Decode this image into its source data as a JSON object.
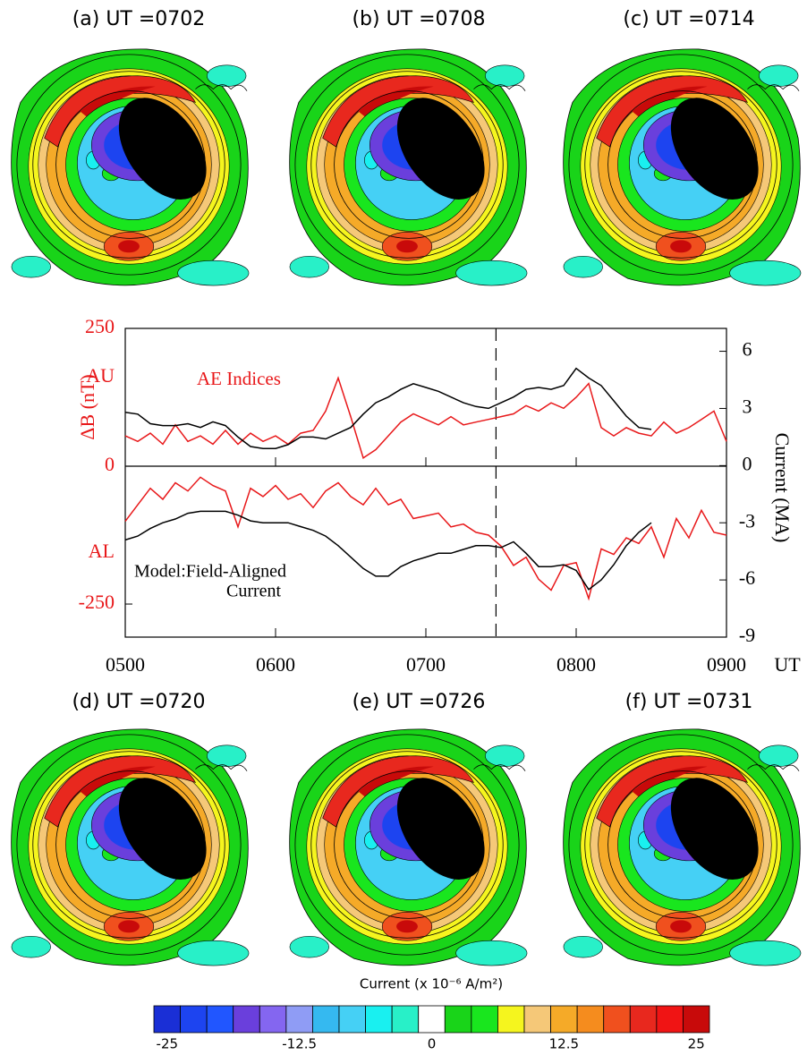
{
  "maps": [
    "(a) UT =0702",
    "(b) UT =0708",
    "(c) UT =0714",
    "(d) UT =0720",
    "(e) UT =0726",
    "(f) UT =0731"
  ],
  "chart_data": [
    {
      "type": "line",
      "ylabel": "ΔB (nT)",
      "y2label": "Current (MA)",
      "xlabel": "UT",
      "au_label": "AU",
      "al_label": "AL",
      "ae_label": "AE Indices",
      "model_label": [
        "Model:Field-Aligned",
        "Current"
      ],
      "xlim": [
        300,
        540
      ],
      "xticks": [
        {
          "value": 300,
          "label": "0500"
        },
        {
          "value": 360,
          "label": "0600"
        },
        {
          "value": 420,
          "label": "0700"
        },
        {
          "value": 480,
          "label": "0800"
        },
        {
          "value": 540,
          "label": "0900"
        }
      ],
      "ylim": [
        -310,
        250
      ],
      "yticks": [
        250,
        0,
        -250
      ],
      "y2lim": [
        -9,
        7.2
      ],
      "y2ticks": [
        6,
        3,
        0,
        -3,
        -6,
        -9
      ],
      "vline": 448,
      "x": [
        300,
        305,
        310,
        315,
        320,
        325,
        330,
        335,
        340,
        345,
        350,
        355,
        360,
        365,
        370,
        375,
        380,
        385,
        390,
        395,
        400,
        405,
        410,
        415,
        420,
        425,
        430,
        435,
        440,
        445,
        450,
        455,
        460,
        465,
        470,
        475,
        480,
        485,
        490,
        495,
        500,
        505,
        510,
        515,
        520,
        525,
        530,
        535,
        540
      ],
      "series": [
        {
          "color": "#e8181a",
          "values": [
            55,
            45,
            60,
            40,
            75,
            45,
            55,
            40,
            65,
            40,
            60,
            45,
            55,
            40,
            60,
            65,
            100,
            160,
            90,
            15,
            30,
            55,
            80,
            95,
            85,
            75,
            90,
            75,
            80,
            85,
            90,
            95,
            110,
            100,
            115,
            105,
            125,
            150,
            70,
            55,
            70,
            60,
            55,
            80,
            60,
            70,
            85,
            100,
            45
          ]
        },
        {
          "color": "#e8181a",
          "values": [
            -100,
            -70,
            -40,
            -60,
            -30,
            -45,
            -20,
            -35,
            -45,
            -110,
            -40,
            -55,
            -35,
            -60,
            -50,
            -75,
            -45,
            -30,
            -55,
            -70,
            -40,
            -70,
            -60,
            -95,
            -90,
            -85,
            -110,
            -105,
            -120,
            -125,
            -145,
            -180,
            -165,
            -205,
            -225,
            -180,
            -175,
            -240,
            -150,
            -160,
            -130,
            -140,
            -110,
            -165,
            -95,
            -130,
            -80,
            -120,
            -125
          ]
        },
        {
          "color": "#000000",
          "axis": "y2",
          "values": [
            2.8,
            2.7,
            2.2,
            2.1,
            2.1,
            2.2,
            2.0,
            2.3,
            2.1,
            1.5,
            1.0,
            0.9,
            0.9,
            1.1,
            1.5,
            1.5,
            1.4,
            1.7,
            2.0,
            2.7,
            3.3,
            3.6,
            4.0,
            4.3,
            4.1,
            3.9,
            3.6,
            3.3,
            3.1,
            3.0,
            3.3,
            3.6,
            4.0,
            4.1,
            4.0,
            4.2,
            5.1,
            4.6,
            4.2,
            3.4,
            2.6,
            2.0,
            1.9,
            null,
            null,
            null,
            null,
            null,
            null
          ]
        },
        {
          "color": "#000000",
          "axis": "y2",
          "values": [
            -3.9,
            -3.7,
            -3.3,
            -3.0,
            -2.8,
            -2.5,
            -2.4,
            -2.4,
            -2.4,
            -2.6,
            -2.9,
            -3.0,
            -3.0,
            -3.0,
            -3.2,
            -3.4,
            -3.7,
            -4.2,
            -4.8,
            -5.4,
            -5.8,
            -5.8,
            -5.3,
            -5.0,
            -4.8,
            -4.6,
            -4.6,
            -4.4,
            -4.2,
            -4.2,
            -4.3,
            -4.0,
            -4.6,
            -5.3,
            -5.3,
            -5.2,
            -5.5,
            -6.5,
            -6.0,
            -5.2,
            -4.2,
            -3.5,
            -3.0,
            null,
            null,
            null,
            null,
            null,
            null
          ]
        }
      ]
    },
    {
      "type": "colorbar",
      "label": "Current (x 10⁻⁶ A/m²)",
      "values": [
        -25,
        -22.5,
        -20,
        -17.5,
        -15,
        -12.5,
        -10,
        -7.5,
        -5,
        -2.5,
        0,
        2.5,
        5,
        7.5,
        10,
        12.5,
        15,
        17.5,
        20,
        22.5,
        25
      ],
      "colors": [
        "#1a2fd6",
        "#1d44f0",
        "#2156ff",
        "#6a3fdc",
        "#8466f0",
        "#8f9cf5",
        "#35b9f0",
        "#45d0f5",
        "#19f0f0",
        "#28f0c8",
        "#ffffff",
        "#19d419",
        "#19e61e",
        "#f5f51e",
        "#f5c878",
        "#f5aa28",
        "#f58c1e",
        "#f0501e",
        "#e8281e",
        "#f01414",
        "#c80a0a"
      ],
      "ticks": [
        -25,
        -12.5,
        0,
        12.5,
        25
      ]
    }
  ]
}
